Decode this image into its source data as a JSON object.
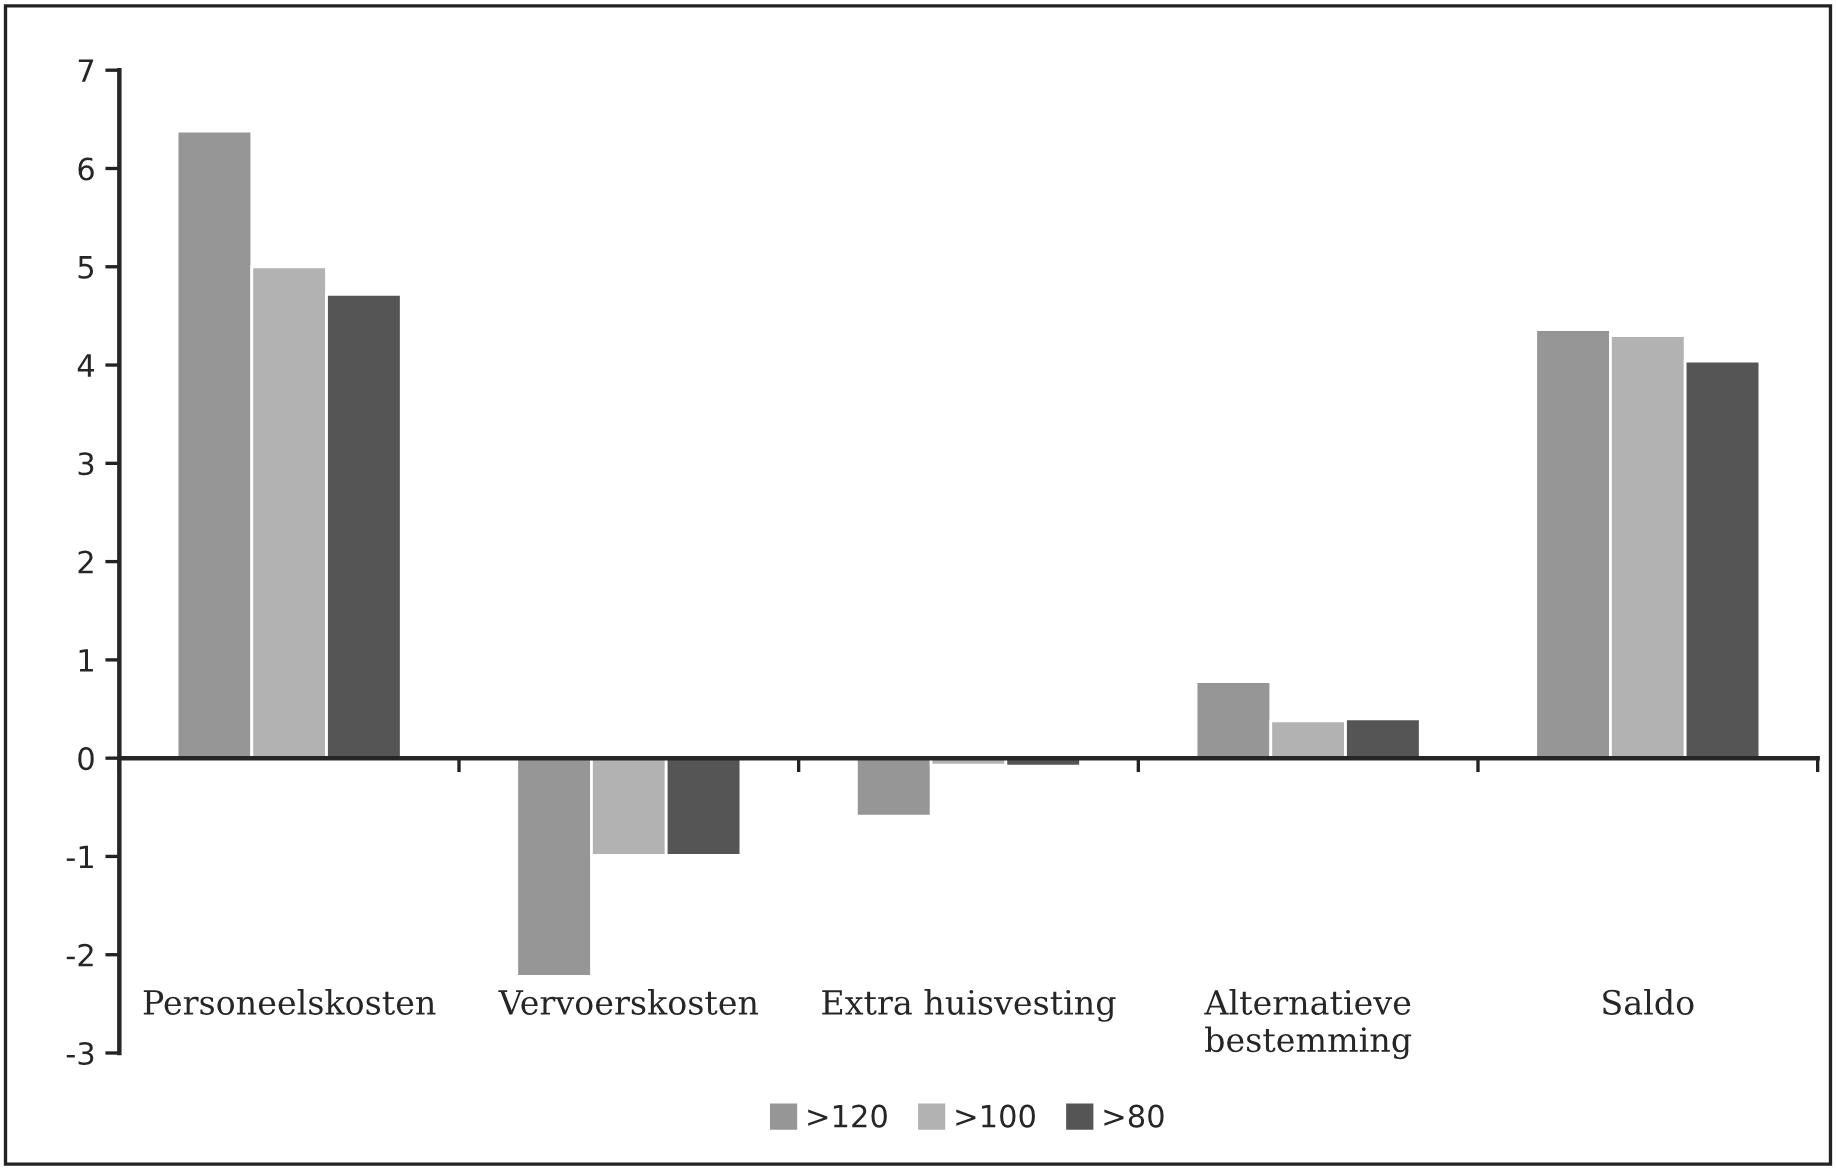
{
  "chart_data": {
    "type": "bar",
    "categories": [
      "Personeelskosten",
      "Vervoerskosten",
      "Extra huisvesting",
      "Alternatieve\nbestemming",
      "Saldo"
    ],
    "series": [
      {
        "name": ">120",
        "color": "#969696",
        "values": [
          6.38,
          -2.22,
          -0.59,
          0.78,
          4.36
        ]
      },
      {
        "name": ">100",
        "color": "#b2b2b2",
        "values": [
          5.0,
          -0.99,
          -0.07,
          0.38,
          4.3
        ]
      },
      {
        "name": ">80",
        "color": "#555555",
        "values": [
          4.72,
          -0.99,
          -0.08,
          0.4,
          4.04
        ]
      }
    ],
    "ylim": [
      -3,
      7
    ],
    "yticks": [
      -3,
      -2,
      -1,
      0,
      1,
      2,
      3,
      4,
      5,
      6,
      7
    ],
    "legend": "bottom"
  }
}
